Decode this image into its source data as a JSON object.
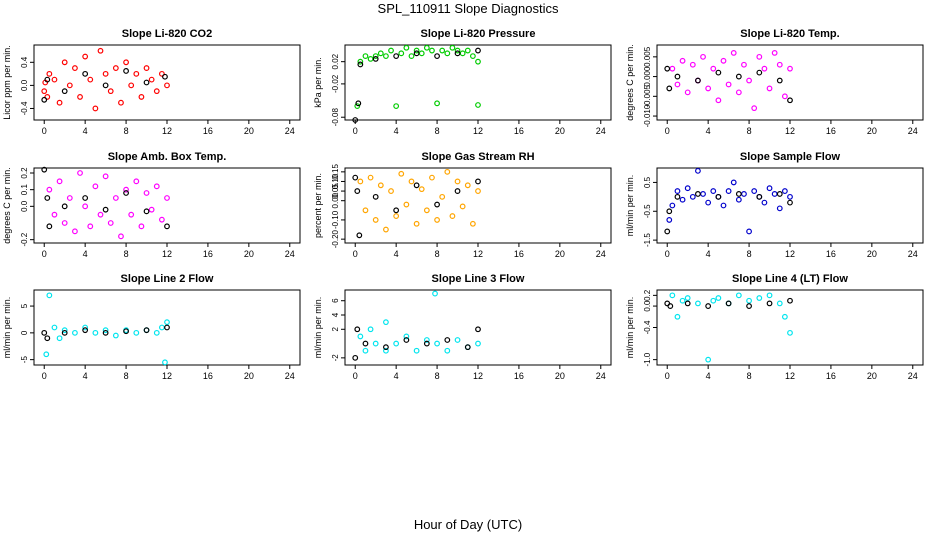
{
  "page": {
    "title": "SPL_110911  Slope Diagnostics",
    "xlabel": "Hour of Day (UTC)"
  },
  "chart_data": [
    {
      "type": "scatter",
      "title": "Slope Li-820 CO2",
      "ylabel": "Licor ppm per min.",
      "xticks": [
        0,
        4,
        8,
        12,
        16,
        20,
        24
      ],
      "yticks": [
        "-0.4",
        "0.0",
        "0.4"
      ],
      "ylim": [
        -0.6,
        0.7
      ],
      "color": "#ff0000",
      "points": [
        [
          0,
          -0.1
        ],
        [
          0.1,
          0.05
        ],
        [
          0.3,
          -0.2
        ],
        [
          0.5,
          0.2
        ],
        [
          1,
          0.1
        ],
        [
          1.5,
          -0.3
        ],
        [
          2,
          0.4
        ],
        [
          2.5,
          0.0
        ],
        [
          3,
          0.3
        ],
        [
          3.5,
          -0.2
        ],
        [
          4,
          0.5
        ],
        [
          4.5,
          0.1
        ],
        [
          5,
          -0.4
        ],
        [
          5.5,
          0.6
        ],
        [
          6,
          0.2
        ],
        [
          6.5,
          -0.1
        ],
        [
          7,
          0.3
        ],
        [
          7.5,
          -0.3
        ],
        [
          8,
          0.4
        ],
        [
          8.5,
          0.0
        ],
        [
          9,
          0.2
        ],
        [
          9.5,
          -0.2
        ],
        [
          10,
          0.3
        ],
        [
          10.5,
          0.1
        ],
        [
          11,
          -0.1
        ],
        [
          11.5,
          0.2
        ],
        [
          12,
          0.0
        ]
      ],
      "control_points": [
        [
          0,
          -0.25
        ],
        [
          0.3,
          0.1
        ],
        [
          2,
          -0.1
        ],
        [
          4,
          0.2
        ],
        [
          6,
          0.0
        ],
        [
          8,
          0.25
        ],
        [
          10,
          0.05
        ],
        [
          11.8,
          0.15
        ]
      ]
    },
    {
      "type": "scatter",
      "title": "Slope Li-820 Pressure",
      "ylabel": "kPa per min.",
      "xticks": [
        0,
        4,
        8,
        12,
        16,
        20,
        24
      ],
      "yticks": [
        "-0.08",
        "-0.02",
        "0.02"
      ],
      "ylim": [
        -0.085,
        0.05
      ],
      "color": "#00cc00",
      "points": [
        [
          0.2,
          -0.06
        ],
        [
          0.5,
          0.02
        ],
        [
          1,
          0.03
        ],
        [
          1.5,
          0.025
        ],
        [
          2,
          0.03
        ],
        [
          2.5,
          0.035
        ],
        [
          3,
          0.03
        ],
        [
          3.5,
          0.04
        ],
        [
          4,
          -0.06
        ],
        [
          4.5,
          0.035
        ],
        [
          5,
          0.045
        ],
        [
          5.5,
          0.03
        ],
        [
          6,
          0.04
        ],
        [
          6.5,
          0.035
        ],
        [
          7,
          0.045
        ],
        [
          7.5,
          0.04
        ],
        [
          8,
          -0.055
        ],
        [
          8.5,
          0.04
        ],
        [
          9,
          0.035
        ],
        [
          9.5,
          0.045
        ],
        [
          10,
          0.04
        ],
        [
          10.5,
          0.035
        ],
        [
          11,
          0.04
        ],
        [
          11.5,
          0.03
        ],
        [
          12,
          -0.058
        ],
        [
          12,
          0.02
        ]
      ],
      "control_points": [
        [
          0,
          -0.085
        ],
        [
          0.3,
          -0.055
        ],
        [
          0.5,
          0.015
        ],
        [
          2,
          0.025
        ],
        [
          4,
          0.03
        ],
        [
          6,
          0.035
        ],
        [
          8,
          0.03
        ],
        [
          10,
          0.035
        ],
        [
          12,
          0.04
        ]
      ]
    },
    {
      "type": "scatter",
      "title": "Slope Li-820 Temp.",
      "ylabel": "degrees C per min.",
      "xticks": [
        0,
        4,
        8,
        12,
        16,
        20,
        24
      ],
      "yticks": [
        "-0.010",
        "-0.005",
        "0.000",
        "0.005"
      ],
      "ylim": [
        -0.011,
        0.008
      ],
      "color": "#ff00ff",
      "points": [
        [
          0.5,
          0.002
        ],
        [
          1,
          -0.002
        ],
        [
          1.5,
          0.004
        ],
        [
          2,
          -0.004
        ],
        [
          2.5,
          0.003
        ],
        [
          3,
          -0.001
        ],
        [
          3.5,
          0.005
        ],
        [
          4,
          -0.003
        ],
        [
          4.5,
          0.002
        ],
        [
          5,
          -0.006
        ],
        [
          5.5,
          0.004
        ],
        [
          6,
          -0.002
        ],
        [
          6.5,
          0.006
        ],
        [
          7,
          -0.004
        ],
        [
          7.5,
          0.003
        ],
        [
          8,
          -0.001
        ],
        [
          8.5,
          -0.008
        ],
        [
          9,
          0.005
        ],
        [
          9.5,
          0.002
        ],
        [
          10,
          -0.003
        ],
        [
          10.5,
          0.006
        ],
        [
          11,
          0.003
        ],
        [
          11.5,
          -0.005
        ],
        [
          12,
          0.002
        ]
      ],
      "control_points": [
        [
          0,
          0.002
        ],
        [
          0.2,
          -0.003
        ],
        [
          1,
          0.0
        ],
        [
          3,
          -0.001
        ],
        [
          5,
          0.001
        ],
        [
          7,
          0.0
        ],
        [
          9,
          0.001
        ],
        [
          11,
          -0.001
        ],
        [
          12,
          -0.006
        ]
      ]
    },
    {
      "type": "scatter",
      "title": "Slope Amb. Box Temp.",
      "ylabel": "degrees C per min.",
      "xticks": [
        0,
        4,
        8,
        12,
        16,
        20,
        24
      ],
      "yticks": [
        "-0.2",
        "0.0",
        "0.1",
        "0.2"
      ],
      "ylim": [
        -0.22,
        0.23
      ],
      "color": "#ff00ff",
      "points": [
        [
          0.5,
          0.1
        ],
        [
          1,
          -0.05
        ],
        [
          1.5,
          0.15
        ],
        [
          2,
          -0.1
        ],
        [
          2.5,
          0.05
        ],
        [
          3,
          -0.15
        ],
        [
          3.5,
          0.2
        ],
        [
          4,
          0.0
        ],
        [
          4.5,
          -0.12
        ],
        [
          5,
          0.12
        ],
        [
          5.5,
          -0.05
        ],
        [
          6,
          0.18
        ],
        [
          6.5,
          -0.1
        ],
        [
          7,
          0.05
        ],
        [
          7.5,
          -0.18
        ],
        [
          8,
          0.1
        ],
        [
          8.5,
          -0.05
        ],
        [
          9,
          0.15
        ],
        [
          9.5,
          -0.12
        ],
        [
          10,
          0.08
        ],
        [
          10.5,
          -0.02
        ],
        [
          11,
          0.12
        ],
        [
          11.5,
          -0.08
        ],
        [
          12,
          0.05
        ]
      ],
      "control_points": [
        [
          0,
          0.22
        ],
        [
          0.3,
          0.05
        ],
        [
          0.5,
          -0.12
        ],
        [
          2,
          0.0
        ],
        [
          4,
          0.05
        ],
        [
          6,
          -0.02
        ],
        [
          8,
          0.08
        ],
        [
          10,
          -0.03
        ],
        [
          12,
          -0.12
        ]
      ]
    },
    {
      "type": "scatter",
      "title": "Slope Gas Stream RH",
      "ylabel": "percent per min.",
      "xticks": [
        0,
        4,
        8,
        12,
        16,
        20,
        24
      ],
      "yticks": [
        "-0.20",
        "-0.10",
        "0.00",
        "0.05",
        "0.10",
        "0.15"
      ],
      "ylim": [
        -0.22,
        0.17
      ],
      "color": "#ffa500",
      "points": [
        [
          0.5,
          0.1
        ],
        [
          1,
          -0.05
        ],
        [
          1.5,
          0.12
        ],
        [
          2,
          -0.1
        ],
        [
          2.5,
          0.08
        ],
        [
          3,
          -0.15
        ],
        [
          3.5,
          0.05
        ],
        [
          4,
          -0.08
        ],
        [
          4.5,
          0.14
        ],
        [
          5,
          -0.02
        ],
        [
          5.5,
          0.1
        ],
        [
          6,
          -0.12
        ],
        [
          6.5,
          0.06
        ],
        [
          7,
          -0.05
        ],
        [
          7.5,
          0.12
        ],
        [
          8,
          -0.1
        ],
        [
          8.5,
          0.02
        ],
        [
          9,
          0.15
        ],
        [
          9.5,
          -0.08
        ],
        [
          10,
          0.1
        ],
        [
          10.5,
          -0.03
        ],
        [
          11,
          0.08
        ],
        [
          11.5,
          -0.12
        ],
        [
          12,
          0.05
        ]
      ],
      "control_points": [
        [
          0,
          0.12
        ],
        [
          0.2,
          0.05
        ],
        [
          0.4,
          -0.18
        ],
        [
          2,
          0.02
        ],
        [
          4,
          -0.05
        ],
        [
          6,
          0.08
        ],
        [
          8,
          -0.02
        ],
        [
          10,
          0.05
        ],
        [
          12,
          0.1
        ]
      ]
    },
    {
      "type": "scatter",
      "title": "Slope Sample Flow",
      "ylabel": "ml/min per min.",
      "xticks": [
        0,
        4,
        8,
        12,
        16,
        20,
        24
      ],
      "yticks": [
        "-1.5",
        "-0.5",
        "0.5"
      ],
      "ylim": [
        -1.6,
        1.0
      ],
      "color": "#0000cc",
      "points": [
        [
          0.2,
          -0.8
        ],
        [
          0.5,
          -0.3
        ],
        [
          1,
          0.2
        ],
        [
          1.5,
          -0.1
        ],
        [
          2,
          0.3
        ],
        [
          2.5,
          0.0
        ],
        [
          3,
          0.9
        ],
        [
          3.5,
          0.1
        ],
        [
          4,
          -0.2
        ],
        [
          4.5,
          0.2
        ],
        [
          5,
          0.0
        ],
        [
          5.5,
          -0.3
        ],
        [
          6,
          0.2
        ],
        [
          6.5,
          0.5
        ],
        [
          7,
          -0.1
        ],
        [
          7.5,
          0.1
        ],
        [
          8,
          -1.2
        ],
        [
          8.5,
          0.2
        ],
        [
          9,
          0.0
        ],
        [
          9.5,
          -0.2
        ],
        [
          10,
          0.3
        ],
        [
          10.5,
          0.1
        ],
        [
          11,
          -0.4
        ],
        [
          11.5,
          0.2
        ],
        [
          12,
          0.0
        ]
      ],
      "control_points": [
        [
          0,
          -1.2
        ],
        [
          0.2,
          -0.5
        ],
        [
          1,
          0.0
        ],
        [
          3,
          0.1
        ],
        [
          5,
          0.0
        ],
        [
          7,
          0.1
        ],
        [
          9,
          0.0
        ],
        [
          11,
          0.1
        ],
        [
          12,
          -0.2
        ]
      ]
    },
    {
      "type": "scatter",
      "title": "Slope Line 2 Flow",
      "ylabel": "ml/min per min.",
      "xticks": [
        0,
        4,
        8,
        12,
        16,
        20,
        24
      ],
      "yticks": [
        "-5",
        "0",
        "5"
      ],
      "ylim": [
        -6,
        8
      ],
      "color": "#00e5ee",
      "points": [
        [
          0.2,
          -4
        ],
        [
          0.5,
          7
        ],
        [
          1,
          1
        ],
        [
          1.5,
          -1
        ],
        [
          2,
          0.5
        ],
        [
          3,
          0
        ],
        [
          4,
          1
        ],
        [
          5,
          0
        ],
        [
          6,
          0.5
        ],
        [
          7,
          -0.5
        ],
        [
          8,
          0.5
        ],
        [
          9,
          0
        ],
        [
          10,
          0.5
        ],
        [
          11,
          0
        ],
        [
          11.5,
          1
        ],
        [
          11.8,
          -5.5
        ],
        [
          12,
          2
        ]
      ],
      "control_points": [
        [
          0,
          0
        ],
        [
          0.3,
          -1
        ],
        [
          2,
          0
        ],
        [
          4,
          0.5
        ],
        [
          6,
          0
        ],
        [
          8,
          0.3
        ],
        [
          10,
          0.5
        ],
        [
          12,
          1
        ]
      ]
    },
    {
      "type": "scatter",
      "title": "Slope Line 3 Flow",
      "ylabel": "ml/min per min.",
      "xticks": [
        0,
        4,
        8,
        12,
        16,
        20,
        24
      ],
      "yticks": [
        "-2",
        "2",
        "4",
        "6"
      ],
      "ylim": [
        -3,
        7.5
      ],
      "color": "#00e5ee",
      "points": [
        [
          0.5,
          1
        ],
        [
          1,
          -1
        ],
        [
          1.5,
          2
        ],
        [
          2,
          0
        ],
        [
          3,
          -1
        ],
        [
          3,
          3
        ],
        [
          4,
          0
        ],
        [
          5,
          1
        ],
        [
          6,
          -1
        ],
        [
          7,
          0.5
        ],
        [
          7.8,
          7
        ],
        [
          8,
          0
        ],
        [
          9,
          -1
        ],
        [
          10,
          0.5
        ],
        [
          11,
          -0.5
        ],
        [
          12,
          0
        ]
      ],
      "control_points": [
        [
          0,
          -2
        ],
        [
          0.2,
          2
        ],
        [
          1,
          0
        ],
        [
          3,
          -0.5
        ],
        [
          5,
          0.5
        ],
        [
          7,
          0
        ],
        [
          9,
          0.5
        ],
        [
          11,
          -0.5
        ],
        [
          12,
          2
        ]
      ]
    },
    {
      "type": "scatter",
      "title": "Slope Line 4 (LT) Flow",
      "ylabel": "ml/min per min.",
      "xticks": [
        0,
        4,
        8,
        12,
        16,
        20,
        24
      ],
      "yticks": [
        "-1.0",
        "-0.4",
        "0.0",
        "0.2"
      ],
      "ylim": [
        -1.1,
        0.3
      ],
      "color": "#00e5ee",
      "points": [
        [
          0.5,
          0.2
        ],
        [
          1,
          -0.2
        ],
        [
          1.5,
          0.1
        ],
        [
          2,
          0.15
        ],
        [
          3,
          0.05
        ],
        [
          4,
          -1.0
        ],
        [
          4.5,
          0.1
        ],
        [
          5,
          0.15
        ],
        [
          6,
          0.05
        ],
        [
          7,
          0.2
        ],
        [
          8,
          0.1
        ],
        [
          9,
          0.15
        ],
        [
          10,
          0.2
        ],
        [
          11,
          0.05
        ],
        [
          11.5,
          -0.2
        ],
        [
          12,
          -0.5
        ]
      ],
      "control_points": [
        [
          0,
          0.05
        ],
        [
          0.3,
          0.0
        ],
        [
          2,
          0.05
        ],
        [
          4,
          0.0
        ],
        [
          6,
          0.05
        ],
        [
          8,
          0.0
        ],
        [
          10,
          0.05
        ],
        [
          12,
          0.1
        ]
      ]
    }
  ]
}
